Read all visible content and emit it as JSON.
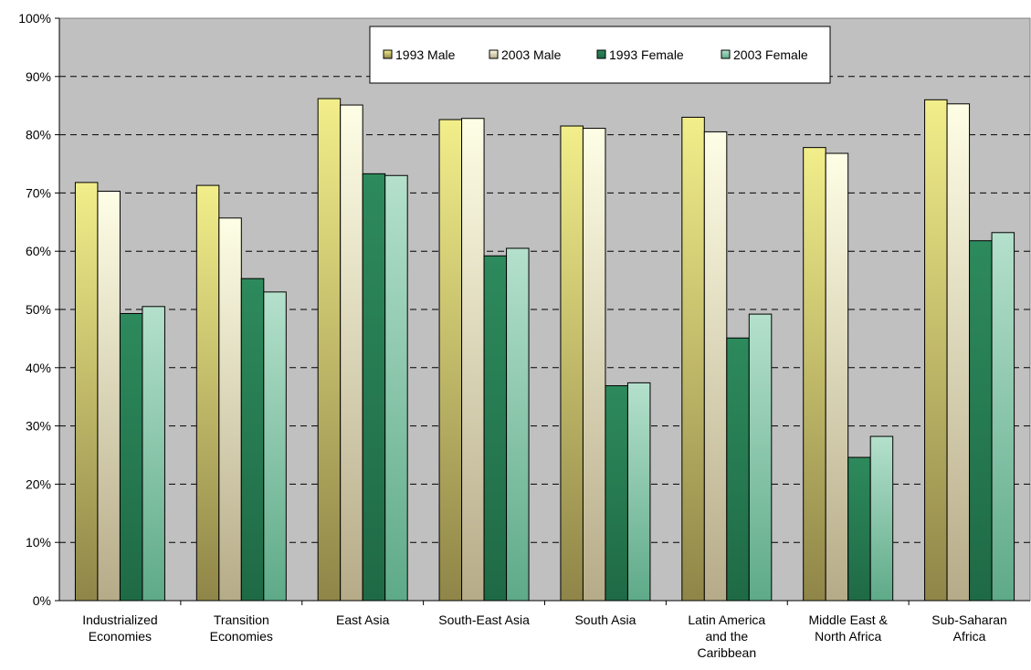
{
  "chart_data": {
    "type": "bar",
    "title": "",
    "xlabel": "",
    "ylabel": "",
    "ylim": [
      0,
      100
    ],
    "y_tick_labels": [
      "0%",
      "10%",
      "20%",
      "30%",
      "40%",
      "50%",
      "60%",
      "70%",
      "80%",
      "90%",
      "100%"
    ],
    "grid": "horizontal dashed",
    "legend_position": "top-center",
    "plot_background": "#c0c0c0",
    "categories": [
      [
        "Industrialized",
        "Economies"
      ],
      [
        "Transition",
        "Economies"
      ],
      [
        "East Asia"
      ],
      [
        "South-East Asia"
      ],
      [
        "South Asia"
      ],
      [
        "Latin America",
        "and the",
        "Caribbean"
      ],
      [
        "Middle East &",
        "North Africa"
      ],
      [
        "Sub-Saharan",
        "Africa"
      ]
    ],
    "series": [
      {
        "name": "1993 Male",
        "color_top": "#f2ee8a",
        "color_bottom": "#8f8548",
        "values": [
          71.8,
          71.3,
          86.2,
          82.6,
          81.5,
          83.0,
          77.8,
          86.0
        ]
      },
      {
        "name": "2003 Male",
        "color_top": "#fefee6",
        "color_bottom": "#b6ab88",
        "values": [
          70.3,
          65.7,
          85.1,
          82.8,
          81.1,
          80.5,
          76.8,
          85.3
        ]
      },
      {
        "name": "1993 Female",
        "color_top": "#2d8a5c",
        "color_bottom": "#1f6a46",
        "values": [
          49.3,
          55.3,
          73.3,
          59.2,
          36.9,
          45.1,
          24.6,
          61.8
        ]
      },
      {
        "name": "2003 Female",
        "color_top": "#b4e0cc",
        "color_bottom": "#5eaa88",
        "values": [
          50.5,
          53.0,
          73.0,
          60.5,
          37.4,
          49.2,
          28.2,
          63.2
        ]
      }
    ]
  }
}
